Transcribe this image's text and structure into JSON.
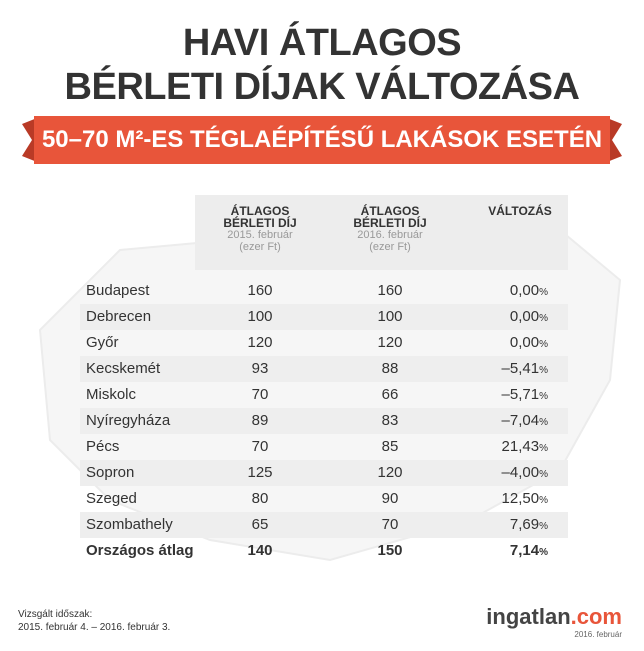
{
  "header": {
    "title_lines": [
      "HAVI ÁTLAGOS",
      "BÉRLETI DÍJAK VÁLTOZÁSA"
    ],
    "banner": "50–70 M²-ES TÉGLAÉPÍTÉSŰ LAKÁSOK ESETÉN"
  },
  "table": {
    "columns": [
      {
        "title": [
          "ÁTLAGOS",
          "BÉRLETI DÍJ"
        ],
        "period": "2015. február",
        "unit": "(ezer Ft)"
      },
      {
        "title": [
          "ÁTLAGOS",
          "BÉRLETI DÍJ"
        ],
        "period": "2016. február",
        "unit": "(ezer Ft)"
      },
      {
        "title": [
          "VÁLTOZÁS"
        ]
      }
    ],
    "percent_sign": "%",
    "rows": [
      [
        "Budapest",
        "160",
        "160",
        "0,00"
      ],
      [
        "Debrecen",
        "100",
        "100",
        "0,00"
      ],
      [
        "Győr",
        "120",
        "120",
        "0,00"
      ],
      [
        "Kecskemét",
        "93",
        "88",
        "–5,41"
      ],
      [
        "Miskolc",
        "70",
        "66",
        "–5,71"
      ],
      [
        "Nyíregyháza",
        "89",
        "83",
        "–7,04"
      ],
      [
        "Pécs",
        "70",
        "85",
        "21,43"
      ],
      [
        "Sopron",
        "125",
        "120",
        "–4,00"
      ],
      [
        "Szeged",
        "80",
        "90",
        "12,50"
      ],
      [
        "Szombathely",
        "65",
        "70",
        "7,69"
      ]
    ],
    "total": [
      "Országos átlag",
      "140",
      "150",
      "7,14"
    ]
  },
  "footer": {
    "period_label": "Vizsgált időszak:",
    "period": "2015. február 4. – 2016. február 3.",
    "logo": [
      "ingatlan",
      ".com"
    ],
    "logo_date": "2016. február"
  }
}
